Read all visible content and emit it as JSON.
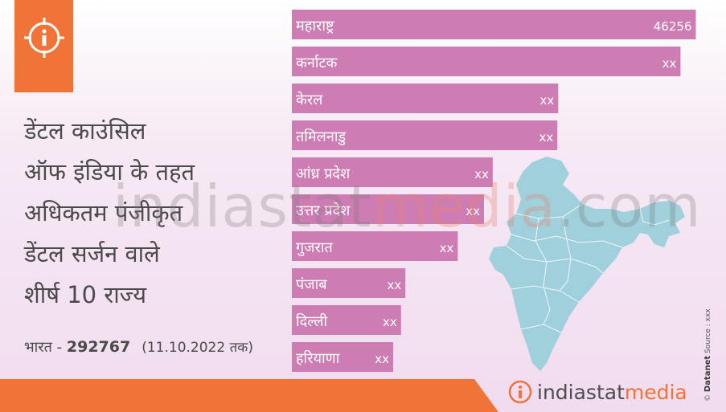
{
  "title_lines": [
    "डेंटल काउंसिल",
    "ऑफ इंडिया के तहत",
    "अधिकतम पंजीकृत",
    "डेंटल सर्जन वाले",
    "शीर्ष 10 राज्य"
  ],
  "total": {
    "label": "भारत - ",
    "value": "292767",
    "date": "(11.10.2022 तक)"
  },
  "watermark": {
    "part1": "indiastat",
    "part2": "media",
    "part3": ".com"
  },
  "brand": {
    "part1": "indiastat",
    "part2": "media"
  },
  "credit": {
    "brand": "Datanet",
    "source": "Source : xxx"
  },
  "colors": {
    "bar": "#cd7db3",
    "bar_text": "#ffffff",
    "accent": "#f07438",
    "map": "#9fd0dc",
    "title": "#4a4a4a"
  },
  "icons": {
    "info": "info-icon",
    "map": "india-map-icon",
    "brand_logo": "info-logo-icon"
  },
  "chart_data": {
    "type": "bar",
    "orientation": "horizontal",
    "categories": [
      "महाराष्ट्र",
      "कर्नाटक",
      "केरल",
      "तमिलनाडु",
      "आंध्र प्रदेश",
      "उत्तर प्रदेश",
      "गुजरात",
      "पंजाब",
      "दिल्ली",
      "हरियाणा"
    ],
    "values": [
      46256,
      44500,
      30500,
      30400,
      23000,
      22000,
      19000,
      13000,
      12500,
      11600
    ],
    "value_labels": [
      "46256",
      "xx",
      "xx",
      "xx",
      "xx",
      "xx",
      "xx",
      "xx",
      "xx",
      "xx"
    ],
    "xlim": [
      0,
      47500
    ]
  }
}
